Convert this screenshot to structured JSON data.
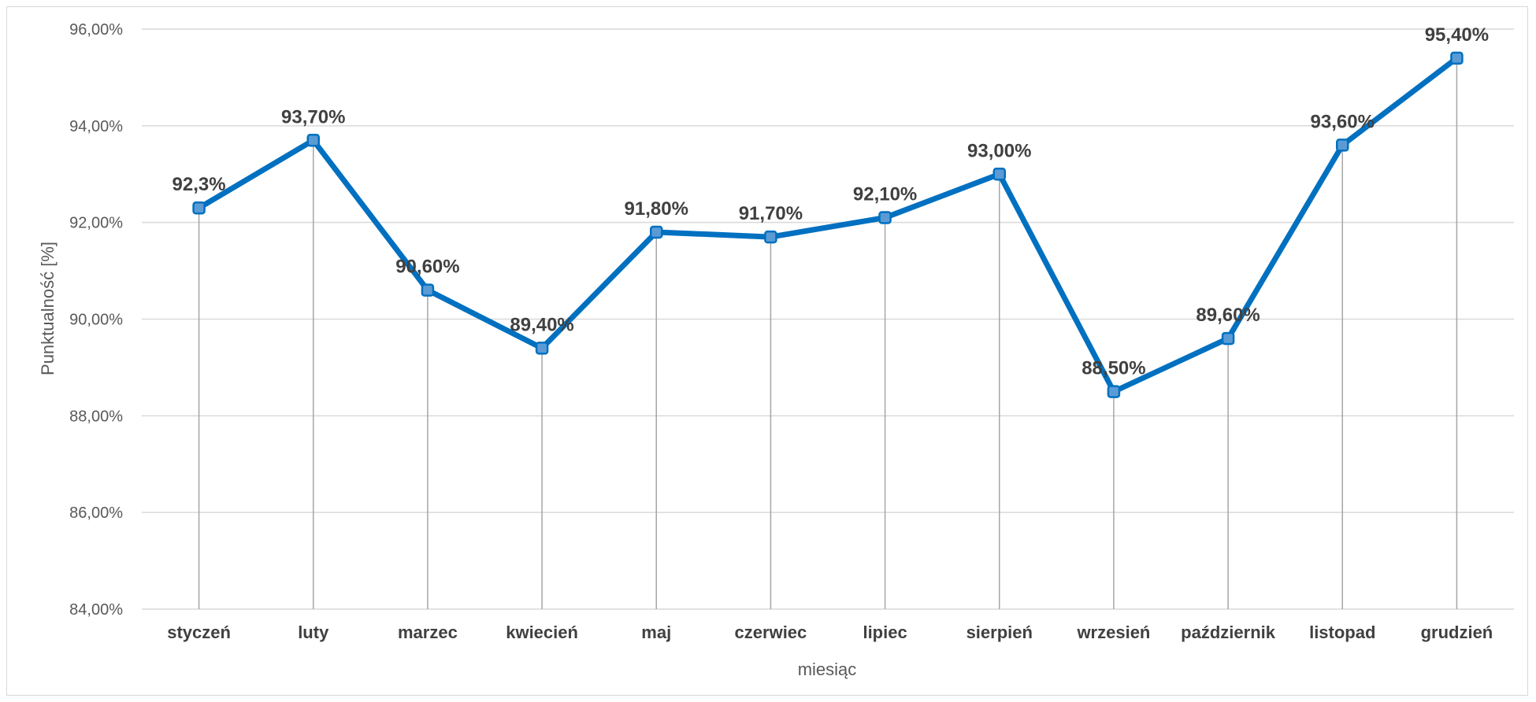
{
  "chart_data": {
    "type": "line",
    "title": "",
    "xlabel": "miesiąc",
    "ylabel": "Punktualność [%]",
    "ylim": [
      84,
      96
    ],
    "yticks": [
      84,
      86,
      88,
      90,
      92,
      94,
      96
    ],
    "ytick_labels": [
      "84,00%",
      "86,00%",
      "88,00%",
      "90,00%",
      "92,00%",
      "94,00%",
      "96,00%"
    ],
    "grid": true,
    "drop_lines": true,
    "line_color": "#0070C0",
    "marker_color": "#5B9BD5",
    "categories": [
      "styczeń",
      "luty",
      "marzec",
      "kwiecień",
      "maj",
      "czerwiec",
      "lipiec",
      "sierpień",
      "wrzesień",
      "październik",
      "listopad",
      "grudzień"
    ],
    "values": [
      92.3,
      93.7,
      90.6,
      89.4,
      91.8,
      91.7,
      92.1,
      93.0,
      88.5,
      89.6,
      93.6,
      95.4
    ],
    "data_labels": [
      "92,3%",
      "93,70%",
      "90,60%",
      "89,40%",
      "91,80%",
      "91,70%",
      "92,10%",
      "93,00%",
      "88,50%",
      "89,60%",
      "93,60%",
      "95,40%"
    ]
  }
}
